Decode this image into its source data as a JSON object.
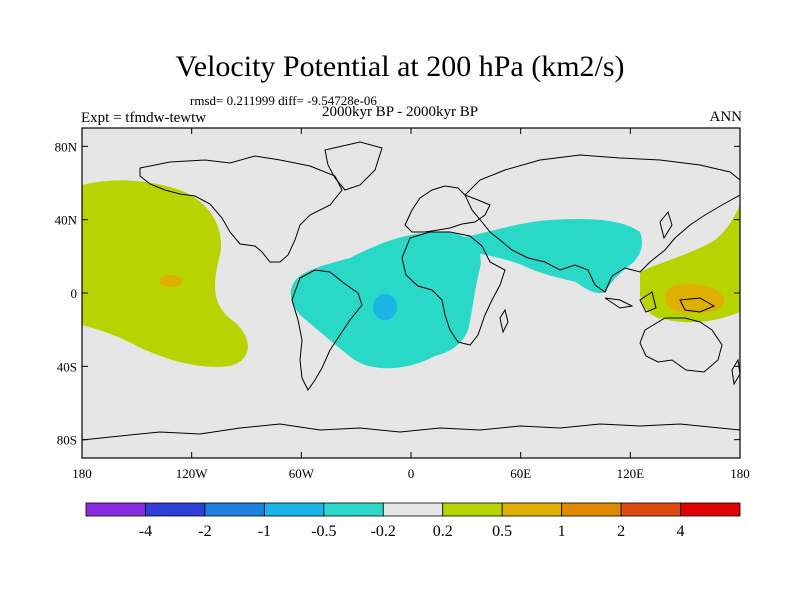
{
  "title": "Velocity Potential at 200 hPa (km2/s)",
  "stats": "rmsd= 0.211999 diff= -9.54728e-06",
  "experiment": "Expt = tfmdw-tewtw",
  "period": "2000kyr BP - 2000kyr BP",
  "season": "ANN",
  "map": {
    "lon_range": [
      -180,
      180
    ],
    "lat_range": [
      -90,
      90
    ],
    "lon_ticks": [
      {
        "value": -180,
        "label": "180"
      },
      {
        "value": -120,
        "label": "120W"
      },
      {
        "value": -60,
        "label": "60W"
      },
      {
        "value": 0,
        "label": "0"
      },
      {
        "value": 60,
        "label": "60E"
      },
      {
        "value": 120,
        "label": "120E"
      },
      {
        "value": 180,
        "label": "180"
      }
    ],
    "lat_ticks": [
      {
        "value": 80,
        "label": "80N"
      },
      {
        "value": 40,
        "label": "40N"
      },
      {
        "value": 0,
        "label": "0"
      },
      {
        "value": -40,
        "label": "40S"
      },
      {
        "value": -80,
        "label": "80S"
      }
    ],
    "background_color": "#e6e6e6"
  },
  "colorbar": {
    "colors": [
      "#8a2be2",
      "#2e3fd9",
      "#1d7fe0",
      "#18b5e6",
      "#2ad8c8",
      "#e6e6e6",
      "#b8d400",
      "#e0b000",
      "#e08a00",
      "#e04a10",
      "#e00000"
    ],
    "labels": [
      "-4",
      "-2",
      "-1",
      "-0.5",
      "-0.2",
      "0.2",
      "0.5",
      "1",
      "2",
      "4"
    ]
  },
  "chart_data": {
    "type": "contour-map",
    "variable": "Velocity Potential at 200 hPa",
    "units": "km2/s",
    "levels": [
      -4,
      -2,
      -1,
      -0.5,
      -0.2,
      0.2,
      0.5,
      1,
      2,
      4
    ],
    "regions": [
      {
        "name": "north-pacific-positive",
        "level_range": [
          0.2,
          0.5
        ]
      },
      {
        "name": "central-pacific-max",
        "level_range": [
          0.5,
          1
        ]
      },
      {
        "name": "atlantic-africa-negative",
        "level_range": [
          -0.5,
          -0.2
        ]
      },
      {
        "name": "south-atlantic-min",
        "level_range": [
          -1,
          -0.5
        ]
      },
      {
        "name": "asia-negative",
        "level_range": [
          -0.5,
          -0.2
        ]
      },
      {
        "name": "west-pacific-positive",
        "level_range": [
          0.2,
          0.5
        ]
      },
      {
        "name": "maritime-continent-max",
        "level_range": [
          0.5,
          1
        ]
      }
    ]
  }
}
